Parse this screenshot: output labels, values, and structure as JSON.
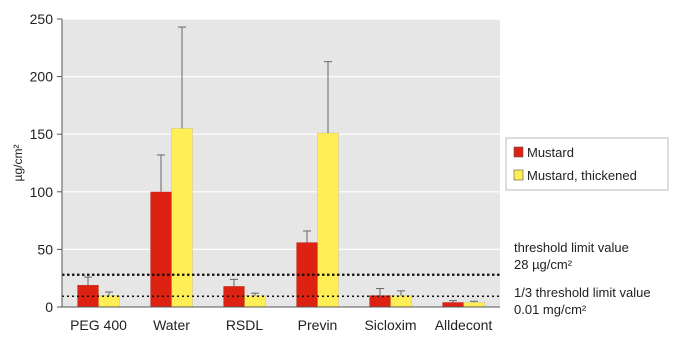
{
  "chart_data": {
    "type": "bar",
    "title": "",
    "xlabel": "",
    "ylabel": "µg/cm²",
    "ylim": [
      0,
      250
    ],
    "yticks": [
      0,
      50,
      100,
      150,
      200,
      250
    ],
    "grid": true,
    "legend_position": "right",
    "categories": [
      "PEG 400",
      "Water",
      "RSDL",
      "Previn",
      "Sicloxim",
      "Alldecont"
    ],
    "series": [
      {
        "name": "Mustard",
        "color": "#dd2211",
        "values": [
          19,
          100,
          18,
          56,
          10,
          4
        ],
        "error_plus": [
          7,
          32,
          6,
          10,
          6,
          1.5
        ]
      },
      {
        "name": "Mustard, thickened",
        "color": "#ffee55",
        "values": [
          10,
          155,
          10,
          151,
          10,
          4
        ],
        "error_plus": [
          3,
          88,
          2,
          62,
          4,
          1
        ]
      }
    ],
    "reference_lines": [
      {
        "value": 28,
        "label_line1": "threshold limit value",
        "label_line2": "28 µg/cm²"
      },
      {
        "value": 9.3,
        "label_line1": "1/3 threshold limit value",
        "label_line2": "0.01 mg/cm²"
      }
    ]
  }
}
